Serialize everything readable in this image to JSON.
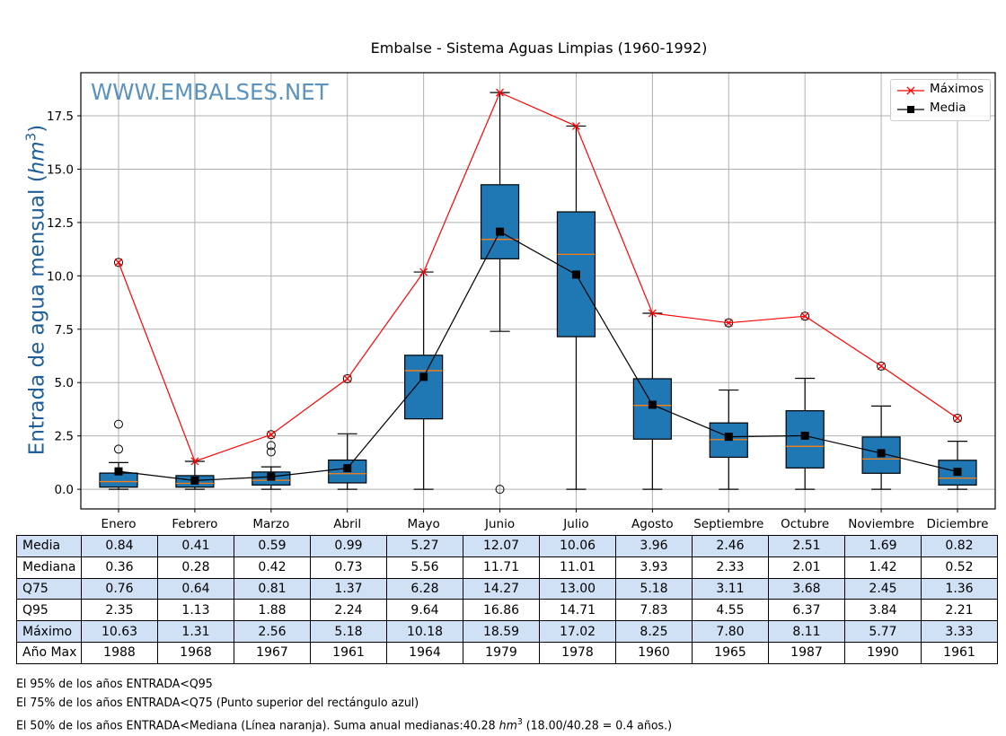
{
  "chart_data": {
    "type": "boxplot",
    "title": "Embalse - Sistema Aguas Limpias (1960-1992)",
    "watermark": "WWW.EMBALSES.NET",
    "ylabel": "Entrada de agua mensual (hm³)",
    "ylabel_parts": {
      "text": "Entrada de agua mensual (",
      "unit_base": "hm",
      "unit_exp": "3",
      "close": ")"
    },
    "ylim": [
      -0.92,
      19.52
    ],
    "yticks": [
      0.0,
      2.5,
      5.0,
      7.5,
      10.0,
      12.5,
      15.0,
      17.5
    ],
    "ytick_labels": [
      "0.0",
      "2.5",
      "5.0",
      "7.5",
      "10.0",
      "12.5",
      "15.0",
      "17.5"
    ],
    "grid": true,
    "legend_position": "top-right",
    "categories": [
      "Enero",
      "Febrero",
      "Marzo",
      "Abril",
      "Mayo",
      "Junio",
      "Julio",
      "Agosto",
      "Septiembre",
      "Octubre",
      "Noviembre",
      "Diciembre"
    ],
    "boxes": [
      {
        "q1": 0.1,
        "median": 0.36,
        "q3": 0.76,
        "whislo": 0.0,
        "whishi": 1.25,
        "fliers": [
          1.88,
          3.05,
          10.63
        ]
      },
      {
        "q1": 0.1,
        "median": 0.28,
        "q3": 0.64,
        "whislo": 0.0,
        "whishi": 1.31,
        "fliers": []
      },
      {
        "q1": 0.2,
        "median": 0.42,
        "q3": 0.81,
        "whislo": 0.0,
        "whishi": 1.05,
        "fliers": [
          1.75,
          2.05,
          2.56
        ]
      },
      {
        "q1": 0.3,
        "median": 0.73,
        "q3": 1.37,
        "whislo": 0.0,
        "whishi": 2.6,
        "fliers": [
          5.18
        ]
      },
      {
        "q1": 3.3,
        "median": 5.56,
        "q3": 6.28,
        "whislo": 0.0,
        "whishi": 10.18,
        "fliers": []
      },
      {
        "q1": 10.8,
        "median": 11.71,
        "q3": 14.27,
        "whislo": 7.4,
        "whishi": 18.59,
        "fliers": [
          0.0
        ]
      },
      {
        "q1": 7.15,
        "median": 11.01,
        "q3": 13.0,
        "whislo": 0.0,
        "whishi": 17.02,
        "fliers": []
      },
      {
        "q1": 2.35,
        "median": 3.93,
        "q3": 5.18,
        "whislo": 0.0,
        "whishi": 8.25,
        "fliers": []
      },
      {
        "q1": 1.5,
        "median": 2.33,
        "q3": 3.11,
        "whislo": 0.0,
        "whishi": 4.65,
        "fliers": [
          7.8
        ]
      },
      {
        "q1": 1.0,
        "median": 2.01,
        "q3": 3.68,
        "whislo": 0.0,
        "whishi": 5.2,
        "fliers": [
          8.11
        ]
      },
      {
        "q1": 0.75,
        "median": 1.42,
        "q3": 2.45,
        "whislo": 0.0,
        "whishi": 3.9,
        "fliers": [
          5.77
        ]
      },
      {
        "q1": 0.2,
        "median": 0.52,
        "q3": 1.36,
        "whislo": 0.0,
        "whishi": 2.25,
        "fliers": [
          3.33
        ]
      }
    ],
    "series": [
      {
        "name": "Máximos",
        "color": "#ff0000",
        "marker": "x",
        "values": [
          10.63,
          1.31,
          2.56,
          5.18,
          10.18,
          18.59,
          17.02,
          8.25,
          7.8,
          8.11,
          5.77,
          3.33
        ]
      },
      {
        "name": "Media",
        "color": "#000000",
        "marker": "square",
        "values": [
          0.84,
          0.41,
          0.59,
          0.99,
          5.27,
          12.07,
          10.06,
          3.96,
          2.46,
          2.51,
          1.69,
          0.82
        ]
      }
    ],
    "colors": {
      "box_fill": "#1f77b4",
      "median_line": "#ff7f0e",
      "grid": "#b0b0b0"
    }
  },
  "table": {
    "row_labels": [
      "Media",
      "Mediana",
      "Q75",
      "Q95",
      "Máximo",
      "Año Max"
    ],
    "rows": [
      [
        "0.84",
        "0.41",
        "0.59",
        "0.99",
        "5.27",
        "12.07",
        "10.06",
        "3.96",
        "2.46",
        "2.51",
        "1.69",
        "0.82"
      ],
      [
        "0.36",
        "0.28",
        "0.42",
        "0.73",
        "5.56",
        "11.71",
        "11.01",
        "3.93",
        "2.33",
        "2.01",
        "1.42",
        "0.52"
      ],
      [
        "0.76",
        "0.64",
        "0.81",
        "1.37",
        "6.28",
        "14.27",
        "13.00",
        "5.18",
        "3.11",
        "3.68",
        "2.45",
        "1.36"
      ],
      [
        "2.35",
        "1.13",
        "1.88",
        "2.24",
        "9.64",
        "16.86",
        "14.71",
        "7.83",
        "4.55",
        "6.37",
        "3.84",
        "2.21"
      ],
      [
        "10.63",
        "1.31",
        "2.56",
        "5.18",
        "10.18",
        "18.59",
        "17.02",
        "8.25",
        "7.80",
        "8.11",
        "5.77",
        "3.33"
      ],
      [
        "1988",
        "1968",
        "1967",
        "1961",
        "1964",
        "1979",
        "1978",
        "1960",
        "1965",
        "1987",
        "1990",
        "1961"
      ]
    ],
    "shaded_color": "#d0e0f5"
  },
  "notes": {
    "line1": "El 95% de los años ENTRADA<Q95",
    "line2": "El 75% de los años ENTRADA<Q75 (Punto superior del rectángulo azul)",
    "line3_a": "El 50% de los años ENTRADA<Mediana (Línea naranja). Suma anual medianas:40.28 ",
    "line3_unit": "hm",
    "line3_exp": "3",
    "line3_b": " (18.00/40.28 = 0.4 años.)"
  }
}
